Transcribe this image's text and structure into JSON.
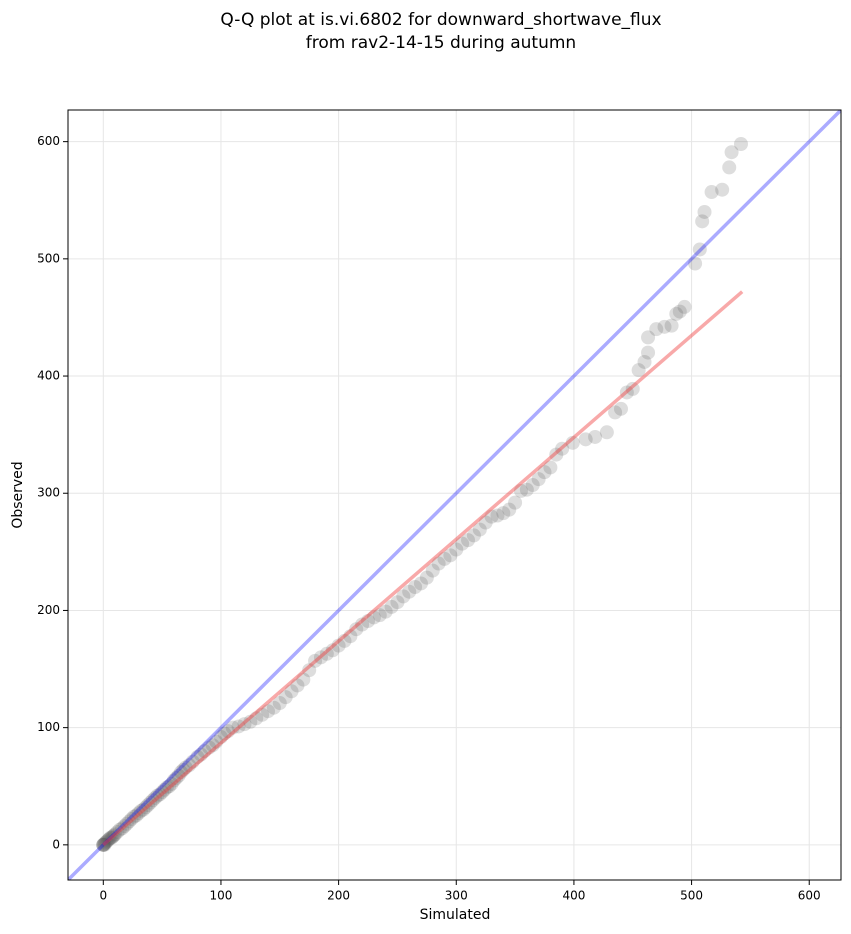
{
  "chart_data": {
    "type": "scatter",
    "title": [
      "Q-Q plot at is.vi.6802 for downward_shortwave_flux",
      "from rav2-14-15 during autumn"
    ],
    "x_label": "Simulated",
    "y_label": "Observed",
    "xlim": [
      -30,
      627
    ],
    "ylim": [
      -30,
      627
    ],
    "xticks": [
      0,
      100,
      200,
      300,
      400,
      500,
      600
    ],
    "yticks": [
      0,
      100,
      200,
      300,
      400,
      500,
      600
    ],
    "grid": true,
    "point_color": "#555555",
    "reference_line": {
      "color": "#0000ff"
    },
    "fit_line": {
      "color": "#f04040",
      "x": [
        0,
        543
      ],
      "y": [
        0,
        472
      ]
    },
    "x": [
      0,
      0,
      0,
      1,
      1,
      2,
      3,
      4,
      5,
      6,
      7,
      8,
      9,
      10,
      12,
      14,
      16,
      18,
      20,
      22,
      24,
      26,
      28,
      30,
      32,
      34,
      36,
      38,
      40,
      42,
      44,
      46,
      48,
      50,
      52,
      54,
      56,
      58,
      60,
      62,
      64,
      66,
      68,
      70,
      73,
      76,
      80,
      83,
      86,
      90,
      93,
      96,
      100,
      103,
      106,
      110,
      115,
      120,
      125,
      130,
      135,
      140,
      145,
      150,
      155,
      160,
      165,
      170,
      175,
      180,
      185,
      190,
      195,
      200,
      205,
      210,
      215,
      220,
      225,
      230,
      235,
      240,
      245,
      250,
      255,
      260,
      265,
      270,
      275,
      280,
      285,
      290,
      295,
      300,
      305,
      310,
      315,
      320,
      325,
      330,
      335,
      340,
      345,
      350,
      355,
      360,
      365,
      370,
      375,
      380,
      385,
      390,
      399,
      410,
      418,
      428,
      435,
      440,
      445,
      450,
      455,
      460,
      463,
      463,
      470,
      477,
      483,
      487,
      490,
      494,
      503,
      507,
      509,
      511,
      517,
      526,
      532,
      534,
      542
    ],
    "values": [
      0,
      0,
      0,
      0,
      1,
      2,
      3,
      4,
      5,
      6,
      6,
      7,
      8,
      9,
      11,
      13,
      14,
      16,
      18,
      20,
      22,
      24,
      25,
      27,
      29,
      30,
      32,
      34,
      36,
      38,
      40,
      42,
      43,
      45,
      47,
      49,
      50,
      52,
      55,
      57,
      59,
      62,
      64,
      66,
      68,
      71,
      75,
      77,
      80,
      83,
      85,
      88,
      92,
      95,
      97,
      100,
      101,
      103,
      105,
      108,
      111,
      114,
      117,
      121,
      126,
      131,
      136,
      141,
      149,
      157,
      160,
      163,
      166,
      170,
      174,
      178,
      184,
      188,
      191,
      194,
      196,
      199,
      203,
      207,
      212,
      216,
      220,
      223,
      228,
      234,
      240,
      244,
      247,
      252,
      257,
      260,
      264,
      269,
      275,
      280,
      281,
      283,
      286,
      292,
      302,
      303,
      307,
      312,
      318,
      322,
      333,
      338,
      343,
      346,
      348,
      352,
      369,
      372,
      386,
      389,
      405,
      412,
      420,
      433,
      440,
      442,
      443,
      453,
      455,
      459,
      496,
      508,
      532,
      540,
      557,
      559,
      578,
      591,
      598
    ]
  }
}
